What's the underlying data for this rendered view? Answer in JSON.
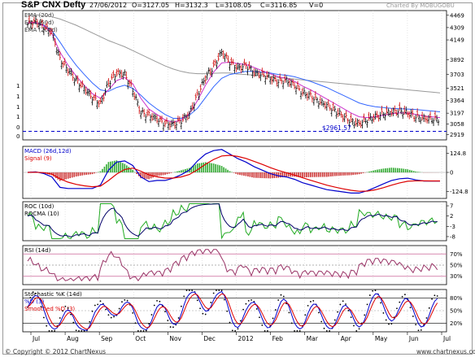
{
  "header": {
    "title": "S&P CNX Defty",
    "date": "27/06/2012",
    "open": "O=3127.05",
    "high": "H=3132.3",
    "low": "L=3108.05",
    "close": "C=3116.85",
    "volume": "V=0",
    "charted_by": "Charted By MOBUGOBU"
  },
  "footer": {
    "copyright": "© Copyright © 2012 ChartNexus",
    "site": "www.chartnexus.com"
  },
  "colors": {
    "ema20": "#cc33cc",
    "ema50": "#3366ff",
    "ema200": "#999999",
    "up_bar": "#000000",
    "down_bar": "#cc0000",
    "support": "#0000cc",
    "macd": "#0000cc",
    "signal": "#dd0000",
    "roc": "#22aa22",
    "rocma": "#000066",
    "rsi": "#993366",
    "stoch_k": "#000000",
    "stoch_d": "#0000cc",
    "stoch_sd": "#dd0000",
    "panel_border": "#cc6699"
  },
  "chart_data": [
    {
      "type": "line",
      "panel": "price",
      "legend": [
        "EMA (20d)",
        "EMA (50d)",
        "EMA (200d)"
      ],
      "y_ticks": [
        "4469",
        "4309",
        "4149",
        "3892",
        "3703",
        "3521",
        "3364",
        "3197",
        "3058",
        "2919"
      ],
      "left_ticks": [
        "1",
        "1",
        "1",
        "1",
        "0",
        "0"
      ],
      "support_label": "$2961.57",
      "support_value": 2961.57,
      "ylim": [
        2850,
        4530
      ],
      "x_ticks": [
        "Jul",
        "Aug",
        "Sep",
        "Oct",
        "Nov",
        "Dec",
        "2012",
        "Feb",
        "Mar",
        "Apr",
        "May",
        "Jun",
        "Jul"
      ],
      "x": [
        0,
        10,
        20,
        30,
        40,
        50,
        60,
        70,
        80,
        90,
        100,
        110,
        120,
        130,
        140,
        150,
        160,
        170,
        180,
        190,
        200,
        210,
        220,
        230,
        240,
        250
      ],
      "close": [
        4350,
        4390,
        4320,
        4250,
        3900,
        3760,
        3620,
        3520,
        3400,
        3320,
        3590,
        3720,
        3700,
        3500,
        3200,
        3170,
        3120,
        3060,
        3050,
        3100,
        3180,
        3430,
        3660,
        3800,
        3990,
        3860
      ],
      "ema20": [
        4370,
        4380,
        4330,
        4230,
        3990,
        3820,
        3680,
        3560,
        3450,
        3390,
        3500,
        3620,
        3660,
        3580,
        3390,
        3250,
        3180,
        3110,
        3080,
        3110,
        3190,
        3360,
        3560,
        3730,
        3850,
        3860
      ],
      "ema50": [
        4370,
        4375,
        4340,
        4270,
        4120,
        3960,
        3820,
        3700,
        3590,
        3500,
        3480,
        3530,
        3560,
        3520,
        3430,
        3330,
        3250,
        3180,
        3130,
        3130,
        3170,
        3260,
        3400,
        3540,
        3650,
        3700
      ],
      "ema200_label_note": "",
      "ema200": [
        4480,
        4475,
        4465,
        4450,
        4420,
        4380,
        4340,
        4290,
        4240,
        4190,
        4140,
        4100,
        4060,
        4010,
        3960,
        3910,
        3860,
        3810,
        3770,
        3740,
        3720,
        3710,
        3710,
        3715,
        3720,
        3718
      ],
      "x2": [
        260,
        270,
        280,
        290,
        300,
        310,
        320,
        330,
        340,
        350,
        360,
        370,
        380,
        390,
        400,
        410,
        420,
        430,
        440,
        450,
        460,
        470,
        480,
        490,
        500,
        510
      ],
      "close2": [
        3780,
        3820,
        3720,
        3700,
        3650,
        3610,
        3620,
        3560,
        3460,
        3420,
        3350,
        3300,
        3230,
        3160,
        3090,
        3060,
        3110,
        3150,
        3190,
        3210,
        3230,
        3200,
        3150,
        3130,
        3120,
        3117
      ],
      "ema20_2": [
        3840,
        3830,
        3790,
        3750,
        3710,
        3670,
        3650,
        3610,
        3550,
        3500,
        3440,
        3380,
        3320,
        3260,
        3200,
        3150,
        3140,
        3150,
        3170,
        3190,
        3200,
        3200,
        3180,
        3160,
        3150,
        3140
      ],
      "ema50_2": [
        3720,
        3740,
        3740,
        3730,
        3720,
        3700,
        3690,
        3670,
        3640,
        3610,
        3570,
        3530,
        3480,
        3430,
        3380,
        3330,
        3300,
        3280,
        3270,
        3260,
        3255,
        3250,
        3245,
        3235,
        3225,
        3215
      ],
      "ema200_2": [
        3705,
        3700,
        3690,
        3680,
        3670,
        3660,
        3650,
        3640,
        3630,
        3620,
        3610,
        3600,
        3590,
        3580,
        3570,
        3560,
        3550,
        3540,
        3530,
        3520,
        3510,
        3500,
        3490,
        3480,
        3470,
        3460
      ]
    },
    {
      "type": "line",
      "panel": "macd",
      "legend": [
        "MACD (26d,12d)",
        "Signal (9)"
      ],
      "y_ticks": [
        "124.8",
        "0",
        "-124.8"
      ],
      "ylim": [
        -170,
        170
      ]
    },
    {
      "type": "line",
      "panel": "roc",
      "legend": [
        "ROC (10d)",
        "ROCMA (10)"
      ],
      "y_ticks": [
        "7",
        "2",
        "-3",
        "-8"
      ],
      "ylim": [
        -10,
        9
      ]
    },
    {
      "type": "line",
      "panel": "rsi",
      "legend": [
        "RSI (14d)"
      ],
      "y_ticks": [
        "70%",
        "50%",
        "30%"
      ],
      "ylim": [
        15,
        85
      ]
    },
    {
      "type": "line",
      "panel": "stochastic",
      "legend": [
        "Stochastic %K (14d)",
        "%D (3)",
        "Smoothed %D (3)"
      ],
      "y_ticks": [
        "80%",
        "50%",
        "20%"
      ],
      "ylim": [
        0,
        100
      ]
    }
  ]
}
